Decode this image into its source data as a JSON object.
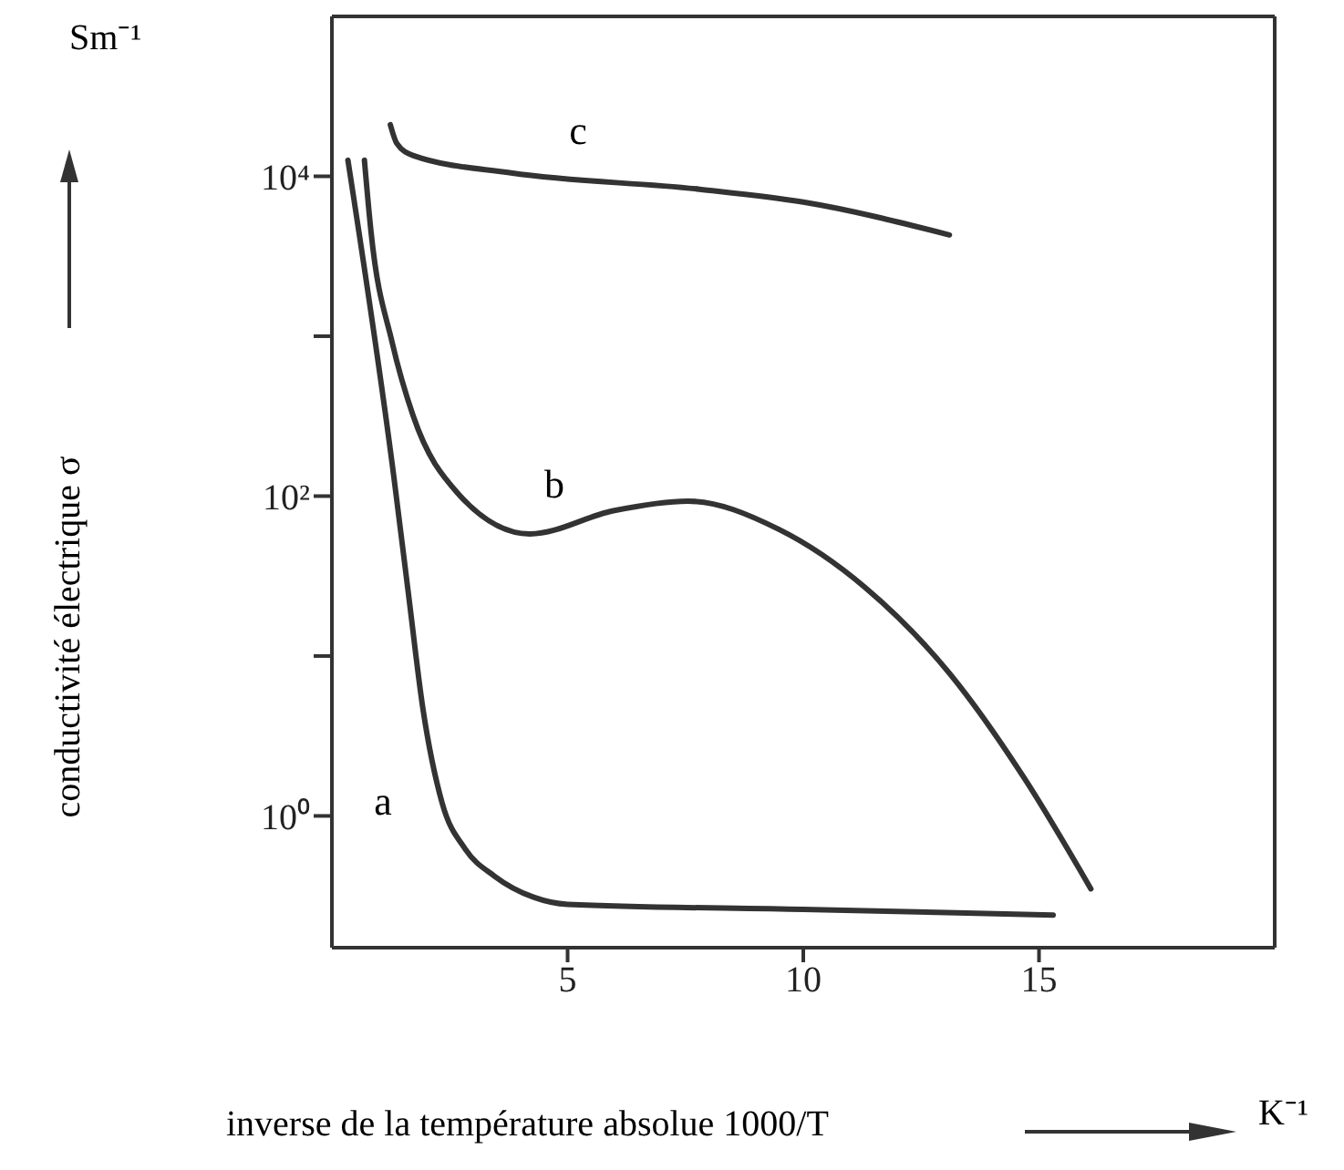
{
  "chart_data": {
    "type": "line",
    "xlabel": "inverse de la température absolue 1000/T",
    "ylabel": "conductivité électrique σ",
    "log": "y",
    "xlim": [
      0,
      20
    ],
    "xticks": [
      5,
      10,
      15
    ],
    "ylim": [
      0.15,
      100000
    ],
    "yticks": [
      {
        "value": 1,
        "label": "10⁰"
      },
      {
        "value": 10,
        "label": null
      },
      {
        "value": 100,
        "label": "10²"
      },
      {
        "value": 1000,
        "label": null
      },
      {
        "value": 10000,
        "label": "10⁴"
      }
    ],
    "legend": false,
    "marker": "none",
    "line_style": "solid",
    "series": [
      {
        "color": "#333333",
        "x": [
          0.34,
          1.31,
          1.62,
          1.93,
          2.34,
          2.83,
          3.45,
          4.28,
          5,
          10,
          15.3
        ],
        "values": [
          12600,
          135,
          25,
          4.7,
          1.2,
          0.62,
          0.42,
          0.31,
          0.28,
          0.26,
          0.24
        ]
      },
      {
        "color": "#333333",
        "x": [
          0.69,
          0.83,
          1.28,
          1.72,
          2.66,
          4.2,
          5.97,
          7.55,
          9.48,
          11.3,
          13.1,
          14.7,
          16.1
        ],
        "values": [
          12600,
          4500,
          910,
          320,
          105,
          58,
          81,
          93,
          62,
          27,
          7.8,
          1.7,
          0.35
        ]
      },
      {
        "color": "#333333",
        "x": [
          1.24,
          1.38,
          1.72,
          3.8,
          7.8,
          10,
          13.1
        ],
        "values": [
          21000,
          16000,
          13500,
          10500,
          8300,
          6900,
          4300
        ]
      }
    ],
    "annotations": [
      "Sm⁻¹",
      "K⁻¹",
      "a",
      "b",
      "c"
    ]
  }
}
